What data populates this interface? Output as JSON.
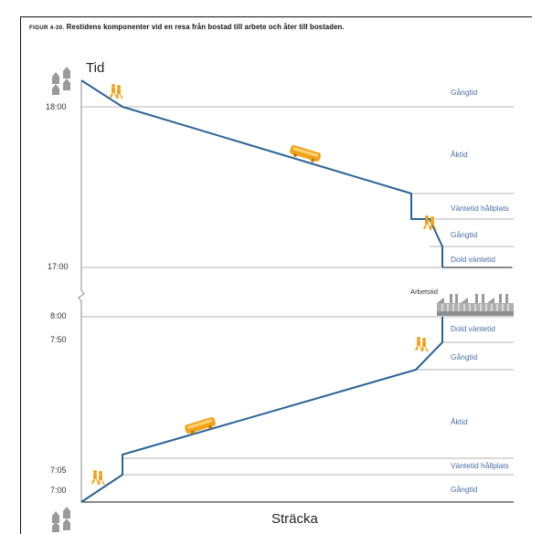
{
  "figure": {
    "label": "FIGUR 4-30.",
    "caption": "Restidens komponenter vid en resa från bostad till arbete och åter till bostaden."
  },
  "axes": {
    "y_title": "Tid",
    "x_title": "Sträcka"
  },
  "top_panel": {
    "times": [
      "18:00",
      "17:00"
    ],
    "segments": [
      "Gångtid",
      "Åktid",
      "Väntetid hållplats",
      "Gångtid",
      "Dold väntetid"
    ]
  },
  "bottom_panel": {
    "times": [
      "8:00",
      "7:50",
      "7:05",
      "7:00"
    ],
    "destination_label": "Arbetstid",
    "segments": [
      "Dold väntetid",
      "Gångtid",
      "Åktid",
      "Väntetid hållplats",
      "Gångtid"
    ]
  },
  "colors": {
    "route_line": "#2a6396",
    "segment_label": "#4a6fa0",
    "bus": "#f2a31b",
    "walker": "#f2a31b",
    "house": "#9a9a9a",
    "factory": "#9a9a9a"
  },
  "icons": [
    "house-icon",
    "walker-icon",
    "bus-icon",
    "factory-icon"
  ]
}
